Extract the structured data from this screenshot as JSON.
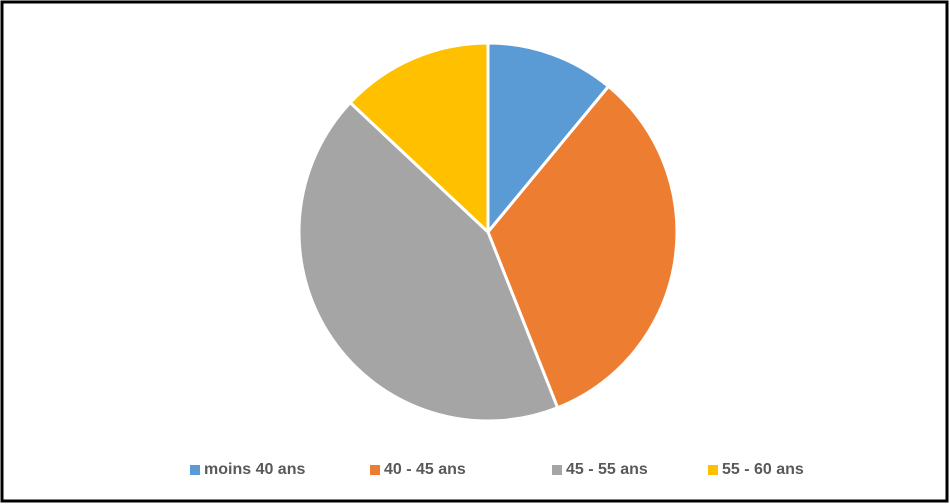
{
  "chart_data": {
    "type": "pie",
    "categories": [
      "moins 40 ans",
      "40 - 45 ans",
      "45 - 55 ans",
      "55 - 60 ans"
    ],
    "values": [
      11,
      33,
      43,
      13
    ],
    "colors": [
      "#5b9bd5",
      "#ed7d31",
      "#a5a5a5",
      "#ffc000"
    ],
    "legend": "bottom"
  }
}
